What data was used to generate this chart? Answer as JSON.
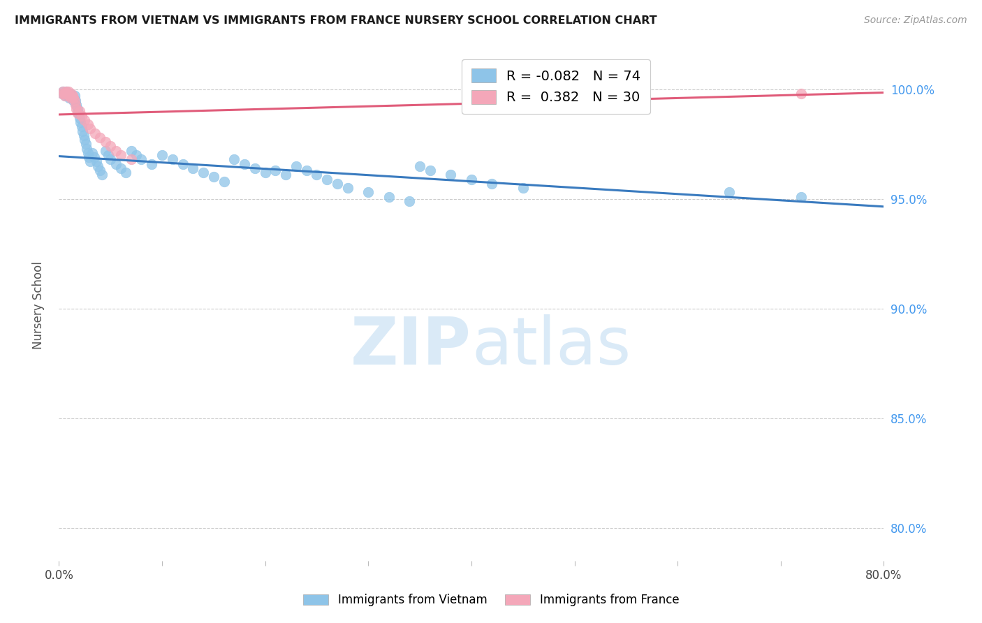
{
  "title": "IMMIGRANTS FROM VIETNAM VS IMMIGRANTS FROM FRANCE NURSERY SCHOOL CORRELATION CHART",
  "source": "Source: ZipAtlas.com",
  "ylabel": "Nursery School",
  "ytick_labels": [
    "100.0%",
    "95.0%",
    "90.0%",
    "85.0%",
    "80.0%"
  ],
  "ytick_values": [
    1.0,
    0.95,
    0.9,
    0.85,
    0.8
  ],
  "xlim": [
    0.0,
    0.8
  ],
  "ylim": [
    0.785,
    1.018
  ],
  "legend_blue_R": "-0.082",
  "legend_blue_N": "74",
  "legend_pink_R": "0.382",
  "legend_pink_N": "30",
  "legend_label_blue": "Immigrants from Vietnam",
  "legend_label_pink": "Immigrants from France",
  "blue_color": "#8ec4e8",
  "pink_color": "#f4a7b9",
  "blue_line_color": "#3a7bbf",
  "pink_line_color": "#e05c7a",
  "watermark_color": "#daeaf7",
  "blue_scatter_x": [
    0.003,
    0.004,
    0.005,
    0.006,
    0.007,
    0.008,
    0.009,
    0.01,
    0.011,
    0.012,
    0.013,
    0.014,
    0.015,
    0.016,
    0.017,
    0.018,
    0.019,
    0.02,
    0.021,
    0.022,
    0.023,
    0.024,
    0.025,
    0.026,
    0.027,
    0.028,
    0.029,
    0.03,
    0.032,
    0.034,
    0.036,
    0.038,
    0.04,
    0.042,
    0.045,
    0.048,
    0.05,
    0.055,
    0.06,
    0.065,
    0.07,
    0.075,
    0.08,
    0.09,
    0.1,
    0.11,
    0.12,
    0.13,
    0.14,
    0.15,
    0.16,
    0.17,
    0.18,
    0.19,
    0.2,
    0.21,
    0.22,
    0.23,
    0.24,
    0.25,
    0.26,
    0.27,
    0.28,
    0.3,
    0.32,
    0.34,
    0.35,
    0.36,
    0.38,
    0.4,
    0.42,
    0.45,
    0.65,
    0.72
  ],
  "blue_scatter_y": [
    0.998,
    0.999,
    0.998,
    0.997,
    0.999,
    0.998,
    0.997,
    0.996,
    0.998,
    0.997,
    0.996,
    0.995,
    0.997,
    0.995,
    0.993,
    0.991,
    0.989,
    0.987,
    0.985,
    0.983,
    0.981,
    0.979,
    0.977,
    0.975,
    0.973,
    0.971,
    0.969,
    0.967,
    0.971,
    0.969,
    0.967,
    0.965,
    0.963,
    0.961,
    0.972,
    0.97,
    0.968,
    0.966,
    0.964,
    0.962,
    0.972,
    0.97,
    0.968,
    0.966,
    0.97,
    0.968,
    0.966,
    0.964,
    0.962,
    0.96,
    0.958,
    0.968,
    0.966,
    0.964,
    0.962,
    0.963,
    0.961,
    0.965,
    0.963,
    0.961,
    0.959,
    0.957,
    0.955,
    0.953,
    0.951,
    0.949,
    0.965,
    0.963,
    0.961,
    0.959,
    0.957,
    0.955,
    0.953,
    0.951
  ],
  "pink_scatter_x": [
    0.003,
    0.004,
    0.005,
    0.006,
    0.007,
    0.008,
    0.009,
    0.01,
    0.011,
    0.012,
    0.013,
    0.014,
    0.015,
    0.016,
    0.017,
    0.018,
    0.02,
    0.022,
    0.025,
    0.028,
    0.03,
    0.035,
    0.04,
    0.045,
    0.05,
    0.055,
    0.06,
    0.07,
    0.55,
    0.72
  ],
  "pink_scatter_y": [
    0.998,
    0.999,
    0.998,
    0.997,
    0.999,
    0.998,
    0.999,
    0.997,
    0.996,
    0.998,
    0.997,
    0.996,
    0.995,
    0.993,
    0.991,
    0.989,
    0.99,
    0.988,
    0.986,
    0.984,
    0.982,
    0.98,
    0.978,
    0.976,
    0.974,
    0.972,
    0.97,
    0.968,
    0.999,
    0.998
  ],
  "blue_trend_x": [
    0.0,
    0.8
  ],
  "blue_trend_y": [
    0.9695,
    0.9465
  ],
  "pink_trend_x": [
    0.0,
    0.8
  ],
  "pink_trend_y": [
    0.9885,
    0.9985
  ]
}
